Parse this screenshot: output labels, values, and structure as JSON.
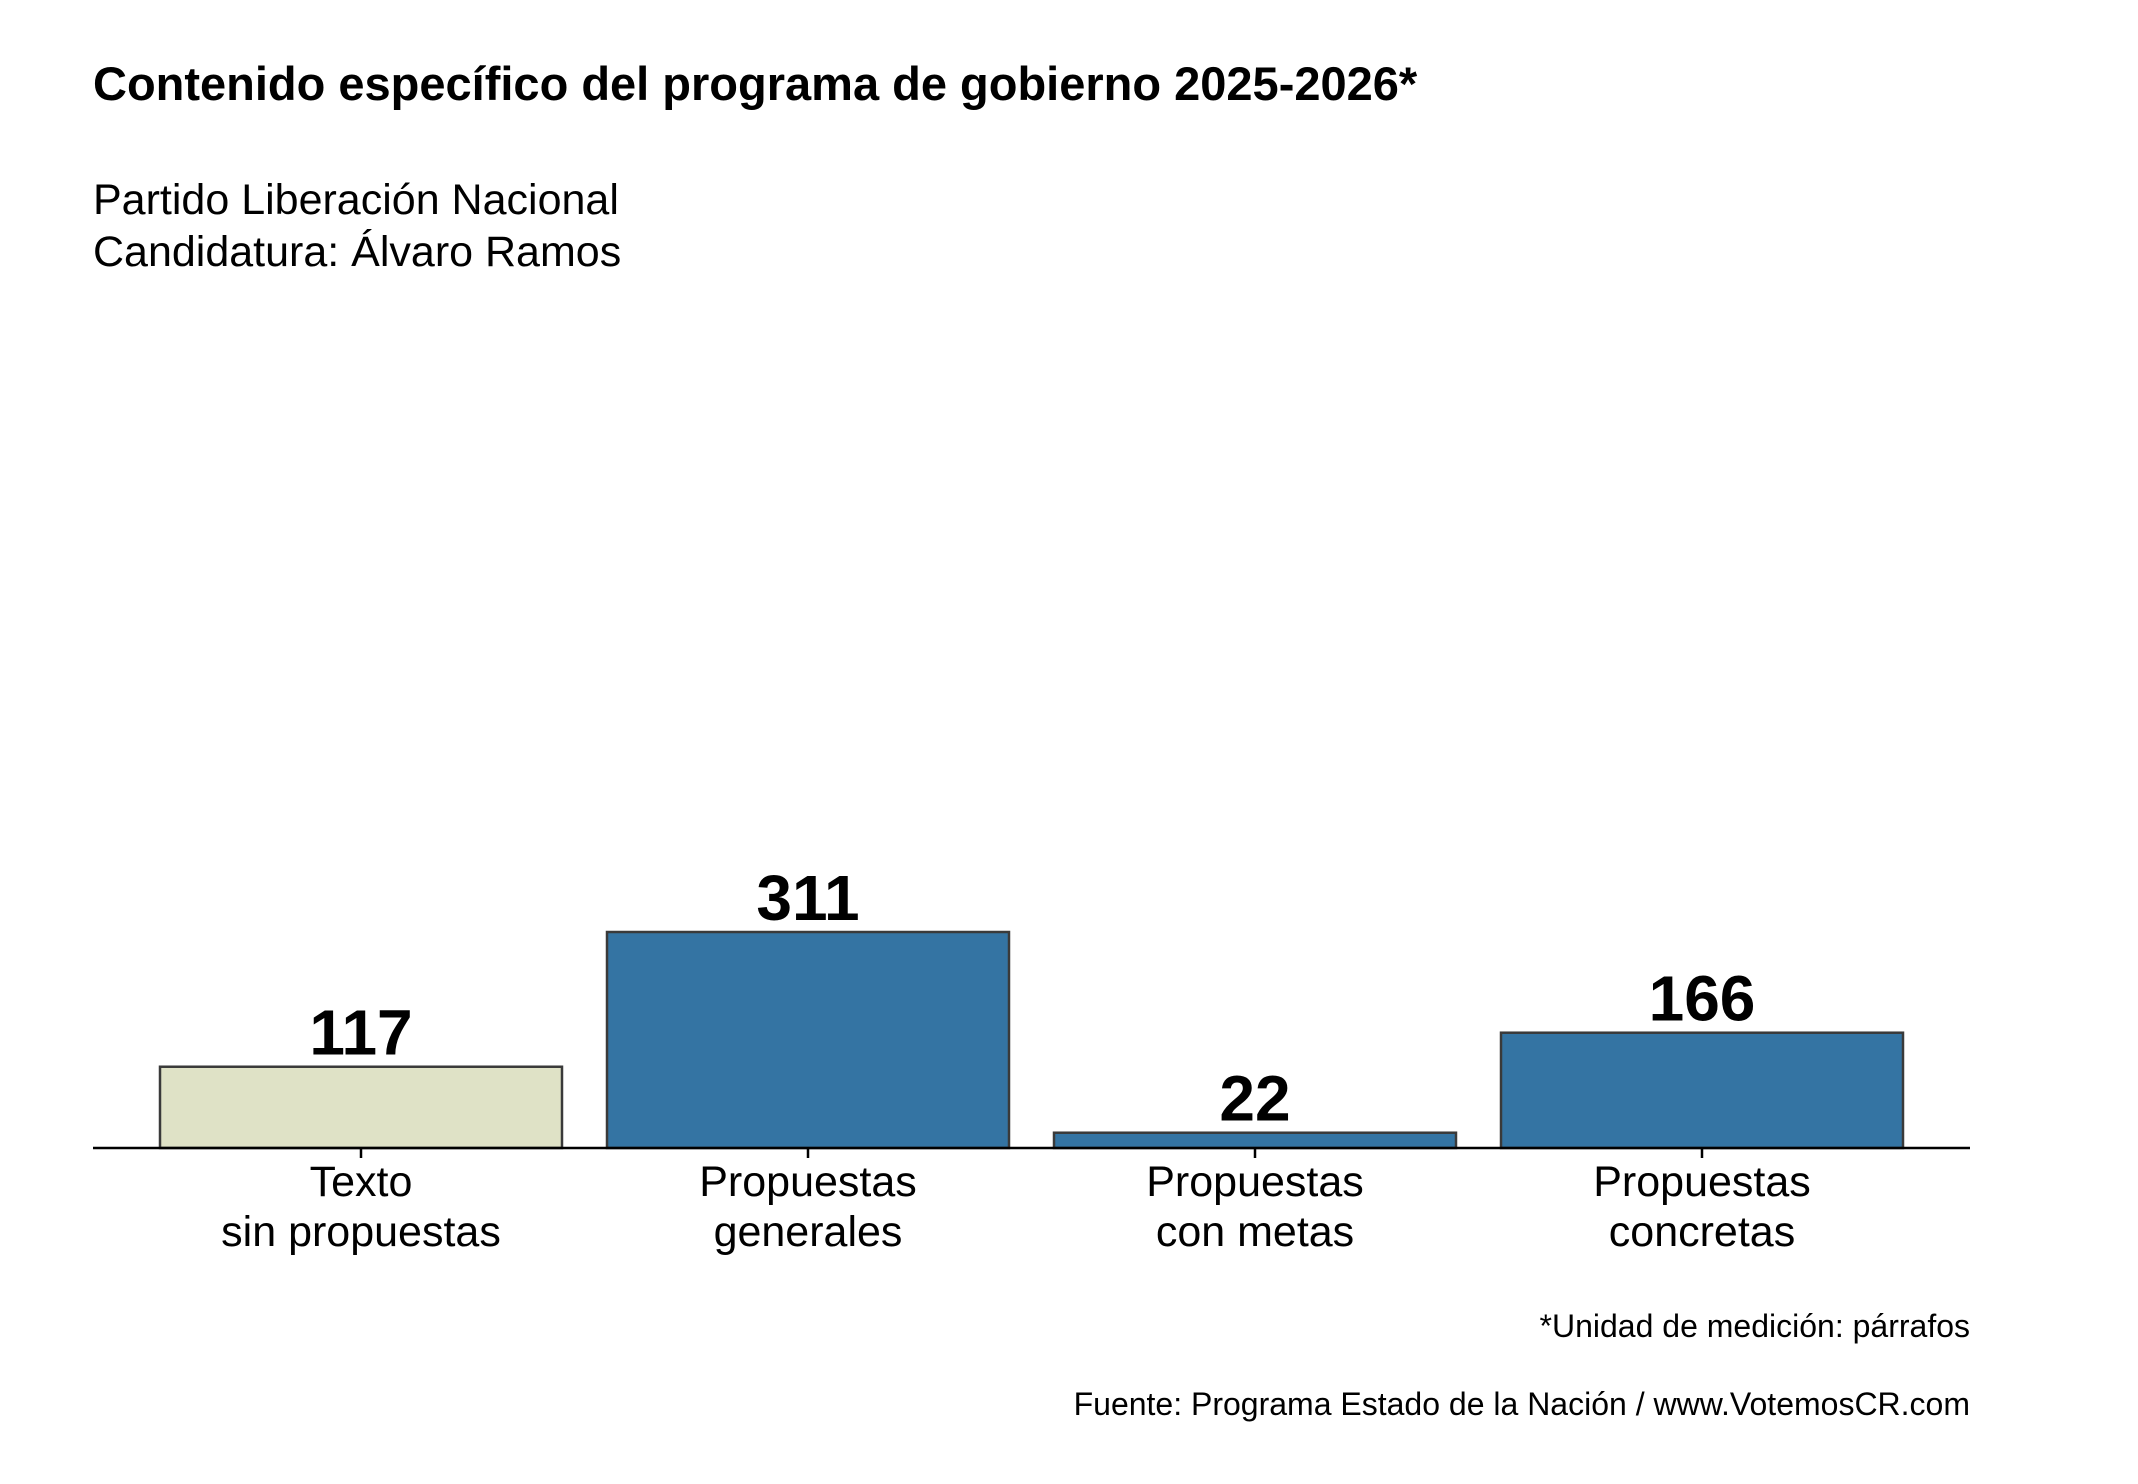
{
  "chart_data": {
    "type": "bar",
    "title": "Contenido específico del programa de gobierno 2025-2026*",
    "subtitle": [
      "Partido Liberación Nacional",
      "Candidatura: Álvaro Ramos"
    ],
    "categories": [
      [
        "Texto",
        "sin propuestas"
      ],
      [
        "Propuestas",
        "generales"
      ],
      [
        "Propuestas",
        "con metas"
      ],
      [
        "Propuestas",
        "concretas"
      ]
    ],
    "values": [
      117,
      311,
      22,
      166
    ],
    "colors": [
      "#DFE2C6",
      "#3474A3",
      "#3474A3",
      "#3474A3"
    ],
    "xlabel": "",
    "ylabel": "",
    "ylim": [
      0,
      311
    ],
    "grid": false,
    "legend": "none",
    "footnote": "*Unidad de medición: párrafos",
    "source": "Fuente: Programa Estado de la Nación / www.VotemosCR.com"
  }
}
